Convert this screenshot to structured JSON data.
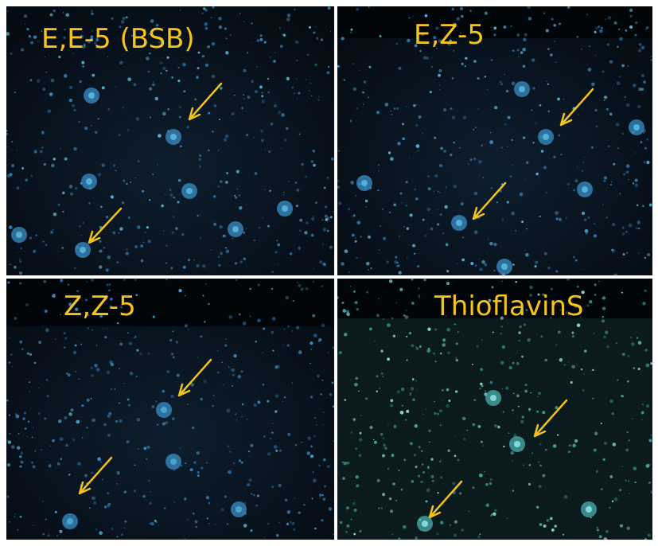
{
  "panels": [
    {
      "label": "E,E-5 (BSB)"
    },
    {
      "label": "E,Z-5"
    },
    {
      "label": "Z,Z-5"
    },
    {
      "label": "ThioflavinS"
    }
  ]
}
